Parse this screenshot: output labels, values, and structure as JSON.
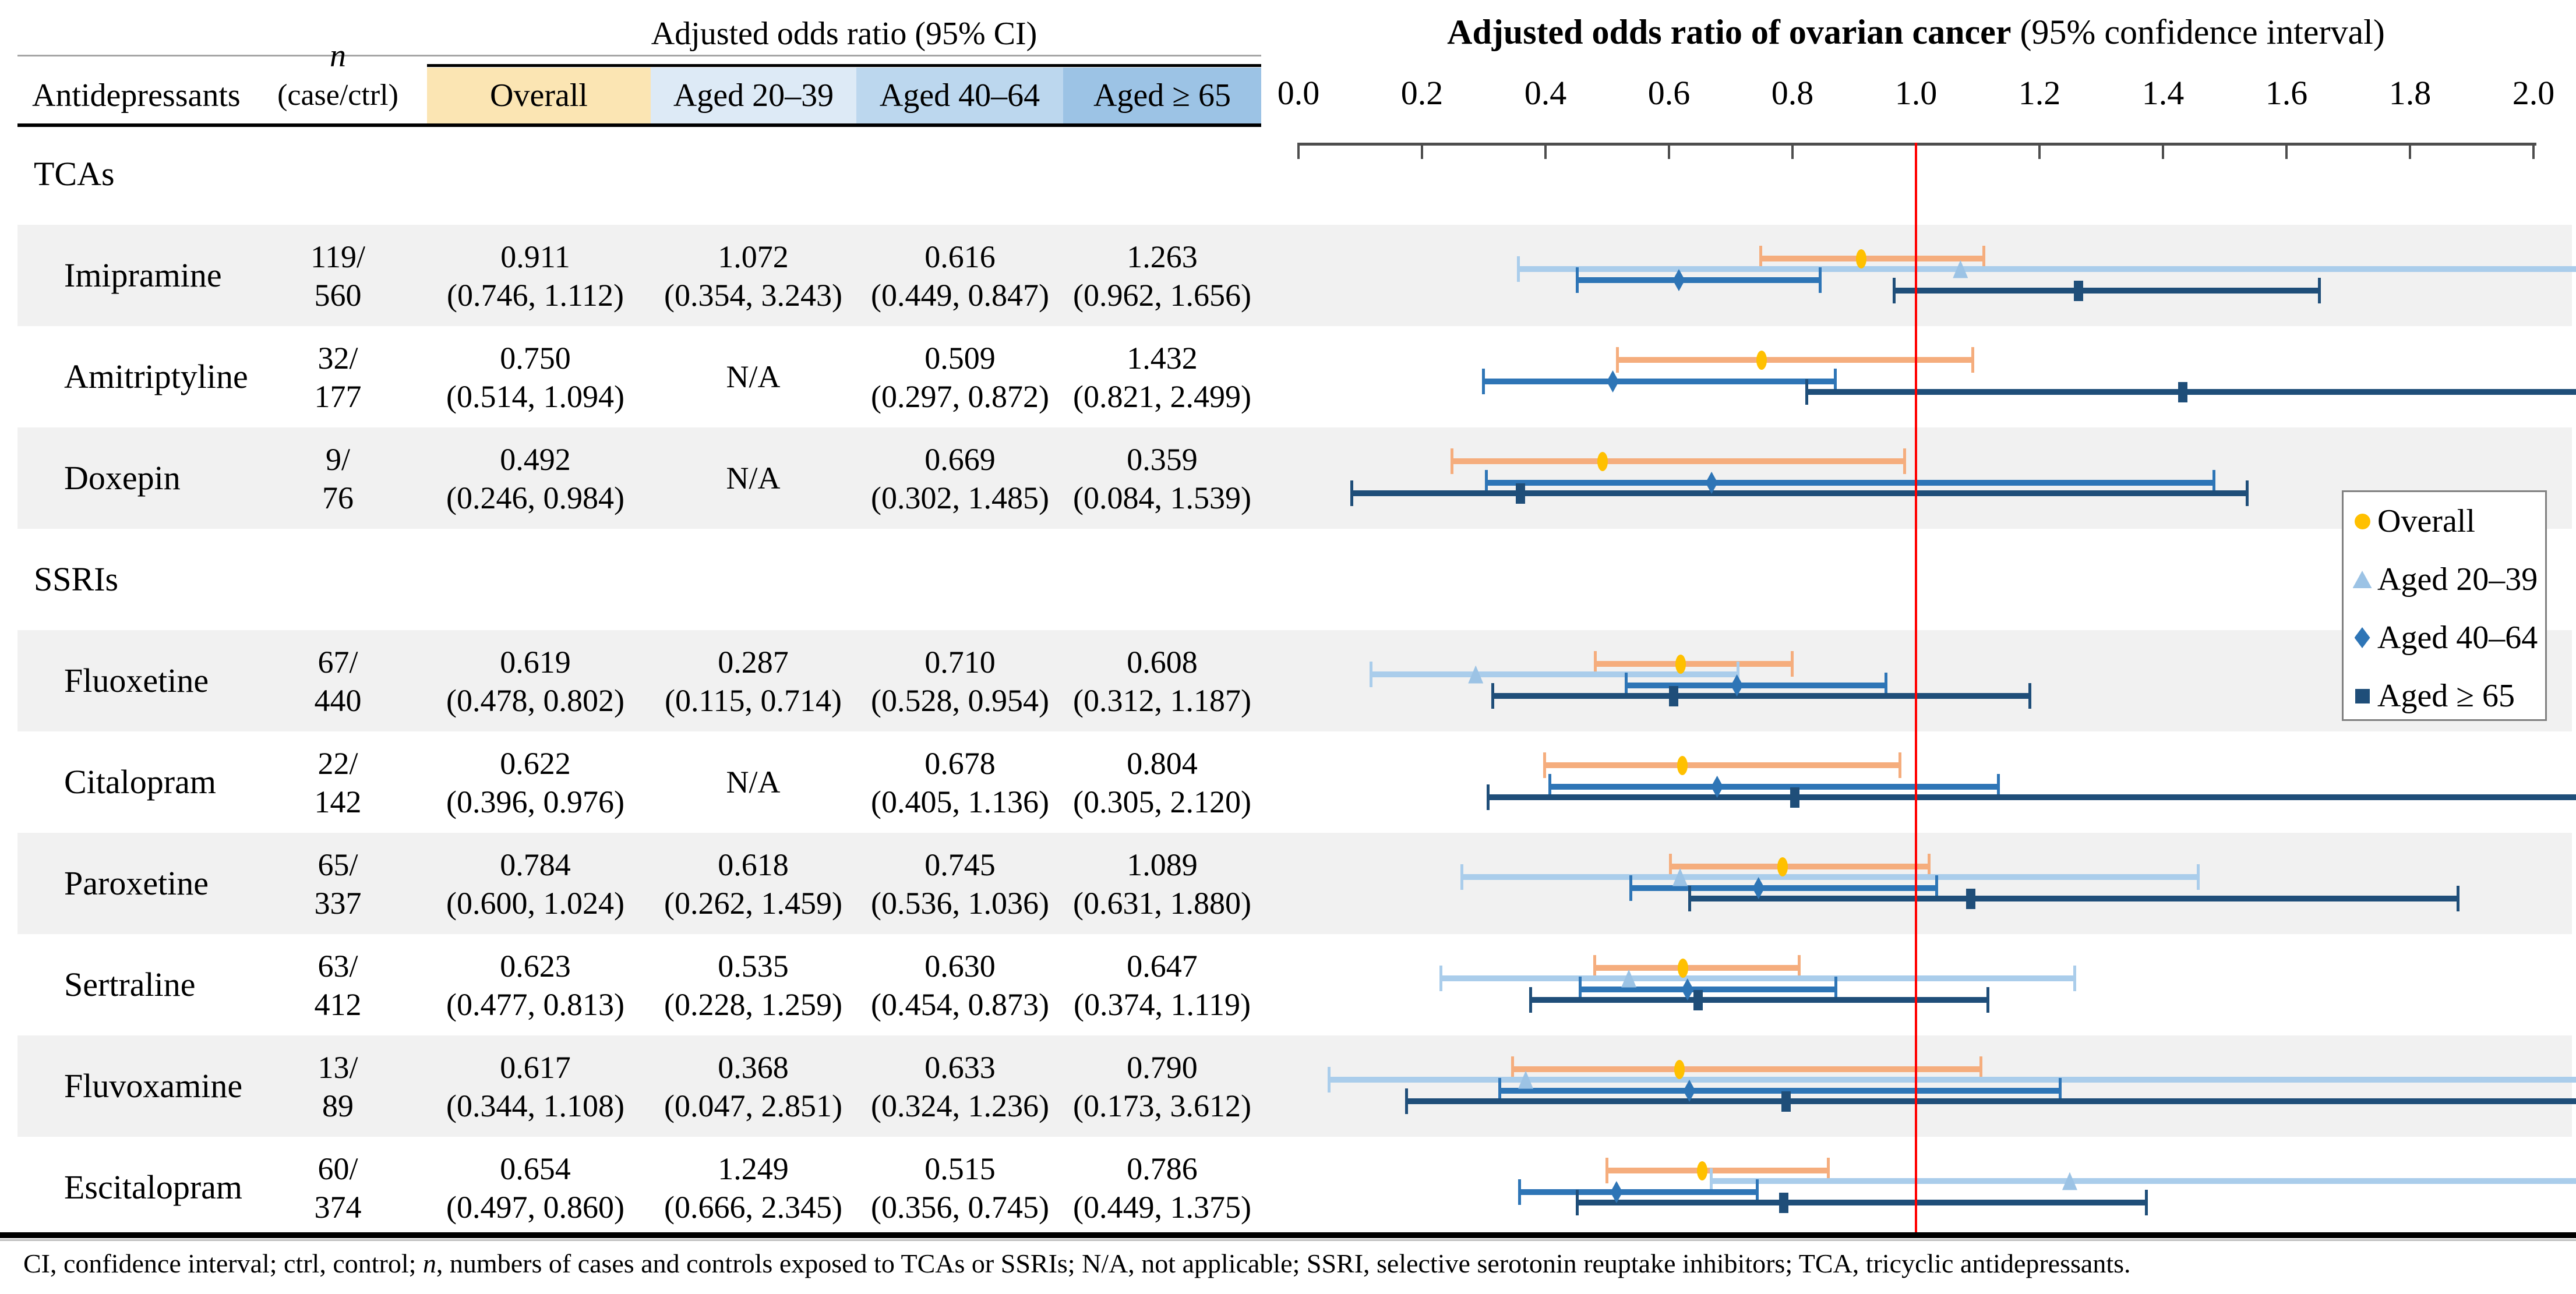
{
  "table": {
    "header": {
      "antidepressants": "Antidepressants",
      "n_italic": "n",
      "n_sub": "(case/ctrl)",
      "or_span": "Adjusted odds ratio (95% CI)",
      "age_cols": [
        "Overall",
        "Aged 20–39",
        "Aged 40–64",
        "Aged ≥ 65"
      ]
    },
    "na_text": "N/A"
  },
  "chart_data": {
    "type": "forest",
    "title_bold": "Adjusted odds ratio of ovarian cancer",
    "title_rest": " (95% confidence interval)",
    "xlim": [
      0.0,
      2.0
    ],
    "xticks": [
      "0.0",
      "0.2",
      "0.4",
      "0.6",
      "0.8",
      "1.0",
      "1.2",
      "1.4",
      "1.6",
      "1.8",
      "2.0"
    ],
    "reference_line": 1.0,
    "grid": false,
    "legend_position": "right-middle",
    "series_names": [
      "Overall",
      "Aged 20–39",
      "Aged 40–64",
      "Aged ≥ 65"
    ],
    "rows": [
      {
        "type": "section",
        "label": "TCAs",
        "shaded": false
      },
      {
        "type": "drug",
        "name": "Imipramine",
        "shaded": true,
        "n_case": "119",
        "n_ctrl": "560",
        "estimates": [
          {
            "est": 0.911,
            "lo": 0.746,
            "hi": 1.112
          },
          {
            "est": 1.072,
            "lo": 0.354,
            "hi": 3.243
          },
          {
            "est": 0.616,
            "lo": 0.449,
            "hi": 0.847
          },
          {
            "est": 1.263,
            "lo": 0.962,
            "hi": 1.656
          }
        ]
      },
      {
        "type": "drug",
        "name": "Amitriptyline",
        "shaded": false,
        "n_case": "32",
        "n_ctrl": "177",
        "estimates": [
          {
            "est": 0.75,
            "lo": 0.514,
            "hi": 1.094
          },
          null,
          {
            "est": 0.509,
            "lo": 0.297,
            "hi": 0.872
          },
          {
            "est": 1.432,
            "lo": 0.821,
            "hi": 2.499
          }
        ]
      },
      {
        "type": "drug",
        "name": "Doxepin",
        "shaded": true,
        "n_case": "9",
        "n_ctrl": "76",
        "estimates": [
          {
            "est": 0.492,
            "lo": 0.246,
            "hi": 0.984
          },
          null,
          {
            "est": 0.669,
            "lo": 0.302,
            "hi": 1.485
          },
          {
            "est": 0.359,
            "lo": 0.084,
            "hi": 1.539
          }
        ]
      },
      {
        "type": "section",
        "label": "SSRIs",
        "shaded": false
      },
      {
        "type": "drug",
        "name": "Fluoxetine",
        "shaded": true,
        "n_case": "67",
        "n_ctrl": "440",
        "estimates": [
          {
            "est": 0.619,
            "lo": 0.478,
            "hi": 0.802
          },
          {
            "est": 0.287,
            "lo": 0.115,
            "hi": 0.714
          },
          {
            "est": 0.71,
            "lo": 0.528,
            "hi": 0.954
          },
          {
            "est": 0.608,
            "lo": 0.312,
            "hi": 1.187
          }
        ]
      },
      {
        "type": "drug",
        "name": "Citalopram",
        "shaded": false,
        "n_case": "22",
        "n_ctrl": "142",
        "estimates": [
          {
            "est": 0.622,
            "lo": 0.396,
            "hi": 0.976
          },
          null,
          {
            "est": 0.678,
            "lo": 0.405,
            "hi": 1.136
          },
          {
            "est": 0.804,
            "lo": 0.305,
            "hi": 2.12
          }
        ]
      },
      {
        "type": "drug",
        "name": "Paroxetine",
        "shaded": true,
        "n_case": "65",
        "n_ctrl": "337",
        "estimates": [
          {
            "est": 0.784,
            "lo": 0.6,
            "hi": 1.024
          },
          {
            "est": 0.618,
            "lo": 0.262,
            "hi": 1.459
          },
          {
            "est": 0.745,
            "lo": 0.536,
            "hi": 1.036
          },
          {
            "est": 1.089,
            "lo": 0.631,
            "hi": 1.88
          }
        ]
      },
      {
        "type": "drug",
        "name": "Sertraline",
        "shaded": false,
        "n_case": "63",
        "n_ctrl": "412",
        "estimates": [
          {
            "est": 0.623,
            "lo": 0.477,
            "hi": 0.813
          },
          {
            "est": 0.535,
            "lo": 0.228,
            "hi": 1.259
          },
          {
            "est": 0.63,
            "lo": 0.454,
            "hi": 0.873
          },
          {
            "est": 0.647,
            "lo": 0.374,
            "hi": 1.119
          }
        ]
      },
      {
        "type": "drug",
        "name": "Fluvoxamine",
        "shaded": true,
        "n_case": "13",
        "n_ctrl": "89",
        "estimates": [
          {
            "est": 0.617,
            "lo": 0.344,
            "hi": 1.108
          },
          {
            "est": 0.368,
            "lo": 0.047,
            "hi": 2.851
          },
          {
            "est": 0.633,
            "lo": 0.324,
            "hi": 1.236
          },
          {
            "est": 0.79,
            "lo": 0.173,
            "hi": 3.612
          }
        ]
      },
      {
        "type": "drug",
        "name": "Escitalopram",
        "shaded": false,
        "n_case": "60",
        "n_ctrl": "374",
        "estimates": [
          {
            "est": 0.654,
            "lo": 0.497,
            "hi": 0.86
          },
          {
            "est": 1.249,
            "lo": 0.666,
            "hi": 2.345
          },
          {
            "est": 0.515,
            "lo": 0.356,
            "hi": 0.745
          },
          {
            "est": 0.786,
            "lo": 0.449,
            "hi": 1.375
          }
        ]
      }
    ],
    "legend": {
      "items": [
        {
          "label": "Overall",
          "marker": "circle"
        },
        {
          "label": "Aged 20–39",
          "marker": "triangle"
        },
        {
          "label": "Aged 40–64",
          "marker": "diamond"
        },
        {
          "label": "Aged ≥ 65",
          "marker": "square"
        }
      ]
    }
  },
  "footnote": {
    "part1": "CI, confidence interval; ctrl, control; ",
    "italic": "n",
    "part2": ", numbers of cases and controls exposed to TCAs or SSRIs; N/A, not applicable; SSRI, selective serotonin reuptake inhibitors; TCA, tricyclic antidepressants."
  },
  "colors": {
    "overall_line": "#F5AD7D",
    "overall_marker": "#FFC000",
    "aged2039_line": "#AACDEB",
    "aged2039_marker": "#9CC3E5",
    "aged4064_line": "#2E75B6",
    "aged4064_marker": "#2E75B6",
    "aged65_line": "#1F4E79",
    "aged65_marker": "#1F4E79",
    "reference_line": "#FF0000",
    "row_band": "#F1F1F1",
    "header_overall_bg": "#FBE5B3",
    "header_aged2039_bg": "#DDEAF6",
    "header_aged4064_bg": "#BCD7EE",
    "header_aged65_bg": "#9CC3E5",
    "axis": "#4D4D4D",
    "legend_border": "#808080"
  }
}
